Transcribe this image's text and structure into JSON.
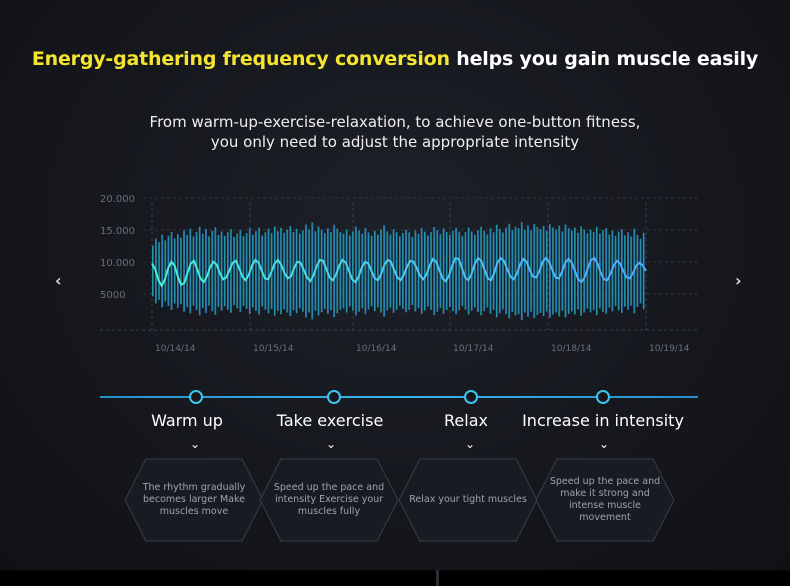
{
  "header": {
    "title_highlight": "Energy-gathering frequency conversion",
    "title_rest": " helps you gain muscle easily",
    "subtitle_line1": "From warm-up-exercise-relaxation, to achieve one-button fitness,",
    "subtitle_line2": "you only need to adjust the appropriate intensity"
  },
  "nav": {
    "prev_icon": "‹",
    "next_icon": "›"
  },
  "colors": {
    "highlight": "#f5e430",
    "accent": "#3ec5ef",
    "bar_start": "#1ec2b0",
    "bar_end": "#2f6fe0"
  },
  "chart_data": {
    "type": "bar",
    "y_ticks": [
      "20.000",
      "15.000",
      "10.000",
      "5000"
    ],
    "x_ticks": [
      "10/14/14",
      "10/15/14",
      "10/16/14",
      "10/17/14",
      "10/18/14",
      "10/19/14"
    ],
    "ylim": [
      0,
      20000
    ],
    "grid": true,
    "bar_heights": [
      9200,
      11800,
      10500,
      13200,
      11100,
      12800,
      14200,
      11800,
      13400,
      12100,
      14800,
      13100,
      15400,
      12600,
      14200,
      16100,
      13500,
      15300,
      12600,
      14600,
      15900,
      13100,
      14400,
      12800,
      14100,
      15200,
      12400,
      13600,
      14900,
      12700,
      13800,
      15600,
      13200,
      14500,
      15800,
      12900,
      14100,
      15400,
      13800,
      16200,
      14500,
      15700,
      13900,
      15100,
      16400,
      14200,
      15300,
      13600,
      14800,
      16900,
      15100,
      17600,
      14400,
      16200,
      15000,
      13800,
      15600,
      14200,
      16800,
      15400,
      14100,
      13600,
      15100,
      12900,
      14400,
      16200,
      14800,
      13500,
      15700,
      14000,
      12800,
      14600,
      13200,
      15100,
      16600,
      14400,
      13300,
      15200,
      14100,
      12600,
      13800,
      15000,
      14100,
      12400,
      14700,
      13500,
      15600,
      14300,
      12900,
      14100,
      16000,
      14800,
      13400,
      15500,
      14200,
      13100,
      14600,
      15700,
      14300,
      12800,
      14100,
      15800,
      14400,
      13200,
      14900,
      16100,
      14600,
      13300,
      15500,
      14100,
      16800,
      15300,
      14000,
      15700,
      17200,
      14900,
      16100,
      15600,
      17800,
      15100,
      16600,
      14800,
      17100,
      16000,
      15200,
      16400,
      14700,
      17000,
      15800,
      15100,
      16500,
      14400,
      16900,
      15600,
      14700,
      15800,
      13900,
      16300,
      15100,
      13700,
      15000,
      14200,
      16100,
      13600,
      14900,
      15600,
      13300,
      14700,
      12800,
      14300,
      15200,
      13000,
      14100,
      12600,
      15400,
      13100,
      11800,
      13900
    ],
    "wave_y": [
      10000,
      9400,
      8200,
      7600,
      8300,
      9500,
      10200,
      9800,
      8600,
      7700,
      7900,
      9000,
      10000,
      10300,
      9400,
      8400,
      8000,
      8600,
      9600,
      10200,
      9900,
      9000,
      8300,
      8500,
      9300,
      10100,
      10300,
      9500,
      8600,
      8200,
      8800,
      9800,
      10400,
      10100,
      9200,
      8400,
      8300,
      9100,
      10000,
      10400,
      9900,
      9000,
      8400,
      8600,
      9500,
      10200,
      10100,
      9300,
      8500,
      8100,
      8700,
      9700,
      10400,
      10300,
      9400,
      8500,
      8200,
      8800,
      9800,
      10400,
      10100,
      9200,
      8300,
      8000,
      8600,
      9600,
      10200,
      10000,
      9200,
      8400,
      8200,
      8900,
      9900,
      10400,
      10200,
      9300,
      8500,
      8200,
      8800,
      9700,
      10300,
      10200,
      9500,
      8700,
      8300,
      8800,
      9800,
      10500,
      10200,
      9300,
      8400,
      8100,
      8700,
      9800,
      10600,
      10500,
      9500,
      8500,
      8200,
      8900,
      10000,
      10600,
      10300,
      9300,
      8400,
      8200,
      9000,
      10100,
      10600,
      10300,
      9400,
      8600,
      8300,
      8900,
      9900,
      10500,
      10200,
      9300,
      8600,
      8500,
      9200,
      10200,
      10600,
      10200,
      9300,
      8500,
      8400,
      9100,
      10100,
      10500,
      10100,
      9200,
      8300,
      8000,
      8500,
      9500,
      10400,
      10600,
      10000,
      9000,
      8300,
      8200,
      8900,
      9800,
      10300,
      10000,
      9200,
      8500,
      8400,
      9000,
      9800,
      10100,
      9800,
      9200
    ]
  },
  "stages": [
    {
      "label": "Warm up",
      "desc": "The rhythm gradually becomes larger Make muscles move",
      "chevron": "⌄"
    },
    {
      "label": "Take exercise",
      "desc": "Speed up the pace and intensity Exercise your muscles fully",
      "chevron": "⌄"
    },
    {
      "label": "Relax",
      "desc": "Relax your tight muscles",
      "chevron": "⌄"
    },
    {
      "label": "Increase in intensity",
      "desc": "Speed up the pace and make it strong and intense muscle movement",
      "chevron": "⌄"
    }
  ]
}
